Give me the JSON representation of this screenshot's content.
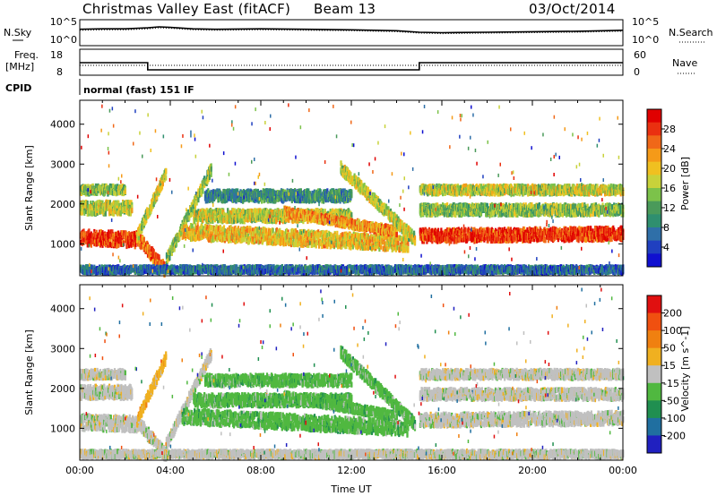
{
  "header": {
    "title": "Christmas Valley East (fitACF)",
    "beam": "Beam 13",
    "date": "03/Oct/2014"
  },
  "panels": {
    "noise": {
      "left_label": "N.Sky",
      "right_label": "N.Search",
      "left_ticks": [
        "10^5",
        "10^0"
      ],
      "right_ticks": [
        "10^5",
        "10^0"
      ]
    },
    "freq": {
      "left_label_1": "Freq.",
      "left_label_2": "[MHz]",
      "right_label": "Nave",
      "left_ticks": [
        "18",
        "8"
      ],
      "right_ticks": [
        "60",
        "0"
      ]
    },
    "cpid": {
      "label": "CPID",
      "value": "normal (fast) 151 IF"
    }
  },
  "chart_data": [
    {
      "type": "line",
      "name": "noise",
      "x": [
        0,
        1,
        2,
        3,
        3.5,
        4,
        5,
        6,
        8,
        10,
        12,
        14,
        15,
        16,
        18,
        20,
        22,
        24
      ],
      "series": [
        {
          "name": "N.Sky",
          "values": [
            3.2,
            3.3,
            3.3,
            3.5,
            3.7,
            3.6,
            3.3,
            3.2,
            3.3,
            3.2,
            3.1,
            2.9,
            2.6,
            2.5,
            2.6,
            2.7,
            2.8,
            3.0
          ]
        },
        {
          "name": "N.Search",
          "values": [
            3.0,
            3.1,
            3.1,
            3.3,
            3.5,
            3.4,
            3.1,
            3.0,
            3.1,
            3.0,
            2.9,
            2.7,
            2.4,
            2.3,
            2.4,
            2.5,
            2.6,
            2.8
          ]
        }
      ],
      "xlim": [
        0,
        24
      ]
    },
    {
      "type": "line",
      "name": "frequency",
      "x": [
        0,
        3,
        3,
        15,
        15,
        24
      ],
      "series": [
        {
          "name": "Freq.",
          "values": [
            14.5,
            14.5,
            10.5,
            10.5,
            14.5,
            14.5
          ]
        },
        {
          "name": "Nave",
          "values": [
            30,
            30,
            30,
            30,
            30,
            30
          ]
        }
      ],
      "xlim": [
        0,
        24
      ]
    },
    {
      "type": "heatmap",
      "name": "power",
      "ylabel": "Slant Range [km]",
      "yticks": [
        "4000",
        "3000",
        "2000",
        "1000"
      ],
      "ylim": [
        200,
        4600
      ],
      "xlim": [
        0,
        24
      ],
      "colorbar": {
        "label": "Power [dB]",
        "ticks": [
          "28",
          "24",
          "20",
          "16",
          "12",
          "8",
          "4"
        ],
        "range": [
          0,
          32
        ],
        "colors": [
          "#1010d0",
          "#2040c0",
          "#2f6fa8",
          "#2f8f6f",
          "#4a9a5a",
          "#7cc24a",
          "#c8d23a",
          "#f0c020",
          "#f59a18",
          "#f06818",
          "#ea3010",
          "#e00000"
        ]
      }
    },
    {
      "type": "heatmap",
      "name": "velocity",
      "ylabel": "Slant Range [km]",
      "xlabel": "Time UT",
      "yticks": [
        "4000",
        "3000",
        "2000",
        "1000"
      ],
      "xticks": [
        "00:00",
        "04:00",
        "08:00",
        "12:00",
        "16:00",
        "20:00",
        "00:00"
      ],
      "ylim": [
        200,
        4600
      ],
      "xlim": [
        0,
        24
      ],
      "colorbar": {
        "label": "Velocity [m s^-1]",
        "ticks": [
          "200",
          "100",
          "50",
          "15",
          "-15",
          "-50",
          "-100",
          "-200"
        ],
        "colors": [
          "#2020c0",
          "#206fa0",
          "#208f50",
          "#50b840",
          "#c0c0c0",
          "#f0b020",
          "#f08010",
          "#f05010",
          "#e01010"
        ]
      }
    }
  ]
}
